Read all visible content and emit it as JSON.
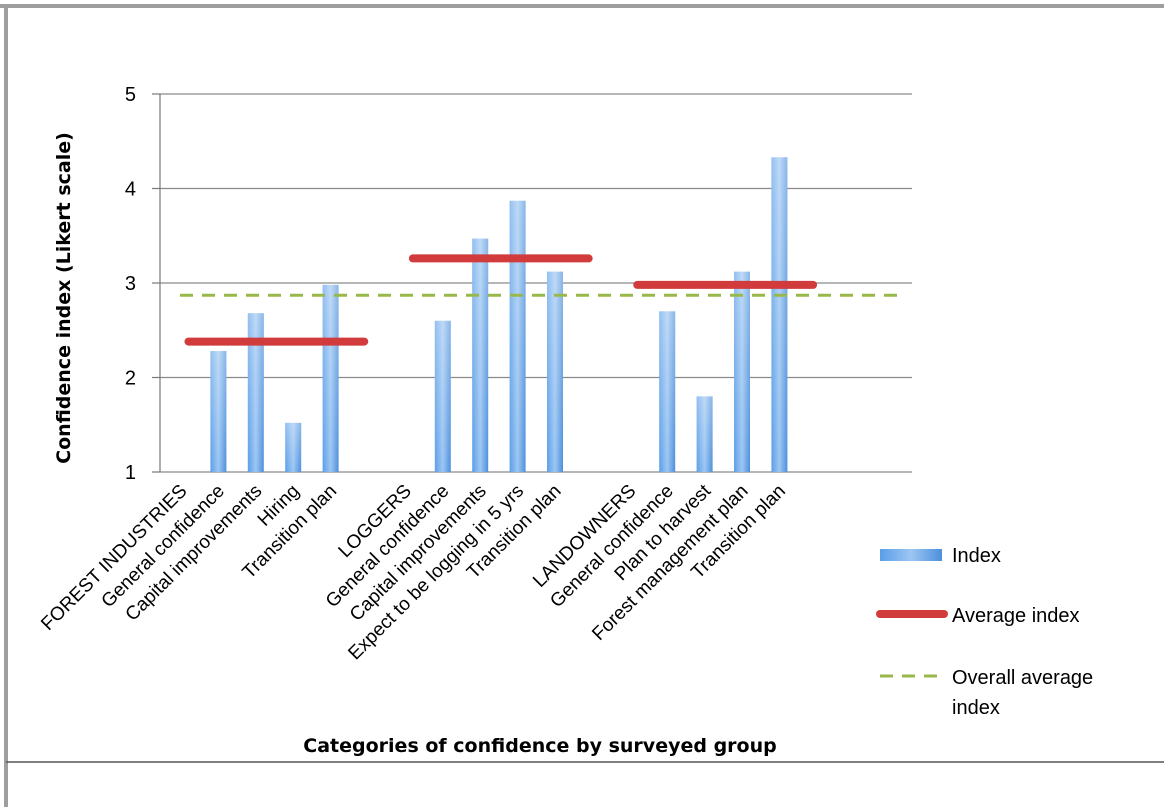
{
  "chart_data": {
    "type": "bar",
    "xlabel": "Categories of confidence by surveyed group",
    "ylabel": "Confidence index (Likert scale)",
    "ylim": [
      1,
      5
    ],
    "yticks": [
      1,
      2,
      3,
      4,
      5
    ],
    "grid": true,
    "legend_position": "right",
    "categories": [
      "FOREST INDUSTRIES",
      "General confidence",
      "Capital improvements",
      "Hiring",
      "Transition plan",
      "",
      "LOGGERS",
      "General confidence",
      "Capital improvements",
      "Expect to be logging in 5 yrs",
      "Transition plan",
      "",
      "LANDOWNERS",
      "General confidence",
      "Plan to harvest",
      "Forest management plan",
      "Transition plan"
    ],
    "series": [
      {
        "name": "Index",
        "type": "bar",
        "color": "#4a8fd9",
        "values": [
          null,
          2.28,
          2.68,
          1.52,
          2.98,
          null,
          null,
          2.6,
          3.47,
          3.87,
          3.12,
          null,
          null,
          2.7,
          1.8,
          3.12,
          4.33
        ]
      },
      {
        "name": "Average index",
        "type": "segment",
        "color": "#d23b3b",
        "segments": [
          {
            "from_category": 1,
            "to_category": 5,
            "value": 2.38
          },
          {
            "from_category": 7,
            "to_category": 11,
            "value": 3.26
          },
          {
            "from_category": 13,
            "to_category": 17,
            "value": 2.98
          }
        ]
      },
      {
        "name": "Overall average index",
        "type": "hline",
        "color": "#98b949",
        "value": 2.87
      }
    ],
    "legend": {
      "index_label": "Index",
      "average_label": "Average index",
      "overall_label_line1": "Overall average",
      "overall_label_line2": "index"
    }
  }
}
